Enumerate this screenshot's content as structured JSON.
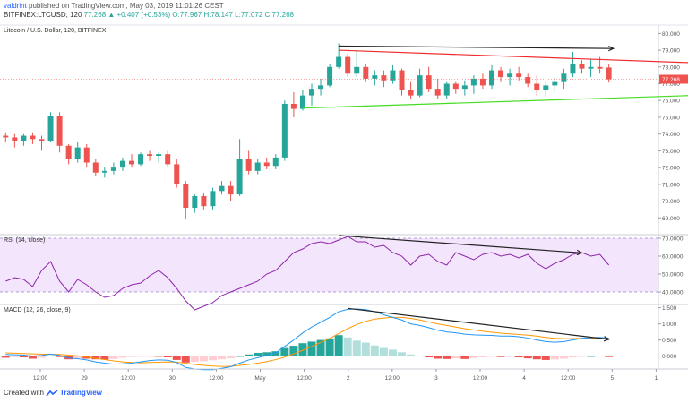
{
  "header": {
    "user": "valdrint",
    "published": "published on TradingView.com, May 03, 2019 11:01:26 CEST",
    "symbol": "BITFINEX:LTCUSD, 120",
    "ohlc": "77.268 ▲ +0.407 (+0.53%) O:77.967 H:78.147 L:77.072 C:77.268"
  },
  "footer": {
    "created": "Created with",
    "brand": "TradingView"
  },
  "colors": {
    "up": "#26a69a",
    "down": "#ef5350",
    "rsi": "#8e24aa",
    "macd": "#2196f3",
    "signal": "#ff9800",
    "rsi_band": "#f3e5fc",
    "price_tag": "#ef5350"
  },
  "chart_data": [
    {
      "type": "candlestick",
      "title": "Litecoin / U.S. Dollar, 120, BITFINEX",
      "ylim": [
        68,
        80.5
      ],
      "yticks": [
        "69.000",
        "70.000",
        "71.000",
        "72.000",
        "73.000",
        "74.000",
        "75.000",
        "76.000",
        "77.000",
        "78.000",
        "79.000",
        "80.000"
      ],
      "last_price": "77.268",
      "x_ticks": [
        "12:00",
        "29",
        "12:00",
        "30",
        "12:00",
        "May",
        "12:00",
        "2",
        "12:00",
        "3",
        "12:00",
        "4",
        "12:00",
        "5",
        "1"
      ],
      "candles": [
        [
          73.9,
          74.1,
          73.5,
          73.8
        ],
        [
          73.8,
          74.0,
          73.2,
          73.6
        ],
        [
          73.6,
          74.0,
          73.3,
          73.9
        ],
        [
          73.9,
          74.1,
          73.4,
          73.7
        ],
        [
          73.7,
          73.9,
          73.0,
          73.6
        ],
        [
          73.6,
          75.3,
          73.5,
          75.1
        ],
        [
          75.1,
          75.3,
          72.9,
          73.3
        ],
        [
          73.3,
          73.4,
          72.2,
          72.5
        ],
        [
          72.5,
          73.5,
          72.3,
          73.2
        ],
        [
          73.2,
          73.4,
          72.0,
          72.3
        ],
        [
          72.3,
          72.5,
          71.5,
          71.7
        ],
        [
          71.7,
          72.0,
          71.4,
          71.8
        ],
        [
          71.8,
          72.3,
          71.6,
          72.0
        ],
        [
          72.0,
          72.6,
          71.8,
          72.4
        ],
        [
          72.4,
          72.8,
          72.0,
          72.2
        ],
        [
          72.2,
          72.9,
          72.1,
          72.8
        ],
        [
          72.8,
          73.0,
          72.4,
          72.7
        ],
        [
          72.7,
          72.9,
          72.3,
          72.8
        ],
        [
          72.8,
          73.0,
          72.0,
          72.2
        ],
        [
          72.2,
          72.5,
          70.8,
          71.0
        ],
        [
          71.0,
          71.2,
          68.9,
          69.6
        ],
        [
          69.6,
          70.4,
          69.3,
          70.3
        ],
        [
          70.3,
          70.5,
          69.5,
          69.7
        ],
        [
          69.7,
          70.8,
          69.5,
          70.6
        ],
        [
          70.6,
          71.2,
          70.4,
          70.9
        ],
        [
          70.9,
          71.2,
          70.0,
          70.4
        ],
        [
          70.4,
          73.7,
          70.3,
          72.5
        ],
        [
          72.5,
          73.0,
          71.6,
          71.8
        ],
        [
          71.8,
          72.5,
          71.6,
          72.3
        ],
        [
          72.3,
          72.6,
          71.9,
          72.1
        ],
        [
          72.1,
          72.8,
          71.9,
          72.6
        ],
        [
          72.6,
          76.0,
          72.4,
          75.8
        ],
        [
          75.8,
          76.5,
          75.0,
          75.5
        ],
        [
          75.5,
          76.6,
          75.4,
          76.3
        ],
        [
          76.3,
          77.0,
          75.7,
          76.7
        ],
        [
          76.7,
          77.3,
          76.3,
          76.9
        ],
        [
          76.9,
          78.2,
          76.8,
          78.0
        ],
        [
          78.0,
          79.4,
          77.9,
          78.6
        ],
        [
          78.6,
          78.8,
          77.4,
          77.6
        ],
        [
          77.6,
          79.0,
          77.4,
          78.0
        ],
        [
          78.0,
          78.2,
          77.1,
          77.3
        ],
        [
          77.3,
          77.8,
          76.9,
          77.5
        ],
        [
          77.5,
          77.8,
          76.8,
          77.2
        ],
        [
          77.2,
          78.1,
          77.0,
          77.8
        ],
        [
          77.8,
          77.9,
          76.3,
          76.6
        ],
        [
          76.6,
          77.1,
          76.1,
          76.3
        ],
        [
          76.3,
          77.9,
          76.2,
          77.5
        ],
        [
          77.5,
          78.0,
          76.5,
          76.7
        ],
        [
          76.7,
          77.3,
          76.1,
          76.3
        ],
        [
          76.3,
          77.1,
          76.1,
          77.0
        ],
        [
          77.0,
          77.1,
          76.4,
          76.7
        ],
        [
          76.7,
          77.2,
          76.3,
          76.9
        ],
        [
          76.9,
          77.5,
          76.4,
          77.3
        ],
        [
          77.3,
          77.6,
          76.7,
          76.9
        ],
        [
          76.9,
          78.1,
          76.7,
          77.8
        ],
        [
          77.8,
          78.0,
          77.1,
          77.4
        ],
        [
          77.4,
          77.9,
          76.9,
          77.6
        ],
        [
          77.6,
          78.0,
          77.2,
          77.4
        ],
        [
          77.4,
          77.6,
          76.8,
          77.0
        ],
        [
          77.0,
          77.5,
          76.3,
          76.6
        ],
        [
          76.6,
          77.1,
          76.2,
          76.9
        ],
        [
          76.9,
          77.4,
          76.5,
          77.1
        ],
        [
          77.1,
          77.9,
          76.7,
          77.6
        ],
        [
          77.6,
          78.9,
          77.4,
          78.2
        ],
        [
          78.2,
          78.4,
          77.6,
          77.9
        ],
        [
          77.9,
          78.5,
          77.4,
          78.0
        ],
        [
          78.0,
          78.6,
          77.6,
          77.9
        ],
        [
          77.967,
          78.147,
          77.072,
          77.268
        ]
      ],
      "trendlines": [
        {
          "color": "#222222",
          "points": [
            [
              37,
              79.25
            ],
            [
              67.5,
              79.1
            ]
          ]
        },
        {
          "color": "#ef2d2d",
          "points": [
            [
              37,
              79.0
            ],
            [
              79,
              78.2
            ]
          ]
        },
        {
          "color": "#44dd22",
          "points": [
            [
              33,
              75.55
            ],
            [
              82,
              76.4
            ]
          ]
        }
      ]
    },
    {
      "type": "line",
      "title": "RSI (14, close)",
      "ylim": [
        33,
        72
      ],
      "band": [
        40,
        70
      ],
      "yticks": [
        "40.0000",
        "50.0000",
        "60.0000",
        "70.0000"
      ],
      "series": [
        {
          "values": [
            46,
            48,
            47,
            43,
            52,
            57,
            46,
            40,
            47,
            44,
            40,
            37,
            38,
            42,
            44,
            45,
            49,
            52,
            48,
            42,
            35,
            30,
            32,
            34,
            38,
            40,
            42,
            44,
            46,
            50,
            52,
            57,
            62,
            64,
            67,
            68,
            67,
            69,
            71,
            68,
            68,
            65,
            66,
            62,
            60,
            55,
            60,
            61,
            57,
            55,
            62,
            60,
            58,
            61,
            62,
            60,
            61,
            59,
            61,
            56,
            53,
            56,
            58,
            61,
            62,
            60,
            61,
            55
          ]
        }
      ],
      "trendlines": [
        {
          "color": "#222222",
          "points": [
            [
              37,
              71.5
            ],
            [
              64,
              61.8
            ]
          ]
        }
      ]
    },
    {
      "type": "bar+line",
      "title": "MACD (12, 26, close, 9)",
      "ylim": [
        -0.4,
        1.6
      ],
      "yticks": [
        "0.000",
        "0.500",
        "1.000",
        "1.500"
      ],
      "histogram": [
        -0.05,
        -0.03,
        -0.04,
        -0.08,
        -0.05,
        0.02,
        -0.03,
        -0.1,
        -0.06,
        -0.08,
        -0.1,
        -0.11,
        -0.09,
        -0.05,
        -0.03,
        -0.02,
        -0.01,
        -0.02,
        -0.04,
        -0.12,
        -0.2,
        -0.18,
        -0.16,
        -0.13,
        -0.1,
        -0.07,
        0.0,
        0.05,
        0.1,
        0.12,
        0.15,
        0.25,
        0.32,
        0.4,
        0.45,
        0.5,
        0.55,
        0.65,
        0.58,
        0.48,
        0.42,
        0.33,
        0.25,
        0.2,
        0.12,
        0.05,
        0.01,
        -0.04,
        -0.08,
        -0.09,
        -0.07,
        -0.09,
        -0.06,
        -0.04,
        -0.02,
        -0.03,
        -0.02,
        -0.04,
        -0.07,
        -0.1,
        -0.12,
        -0.1,
        -0.08,
        -0.04,
        -0.01,
        0.0,
        0.01,
        -0.03
      ],
      "histogram_colors": [
        "#ef5350",
        "#ffcdd2",
        "#26a69a",
        "#b2dfdb"
      ],
      "series": [
        {
          "values": [
            0.05,
            0.04,
            0.03,
            0.0,
            0.02,
            0.06,
            0.02,
            -0.06,
            -0.08,
            -0.12,
            -0.18,
            -0.22,
            -0.25,
            -0.24,
            -0.22,
            -0.18,
            -0.14,
            -0.12,
            -0.13,
            -0.2,
            -0.35,
            -0.4,
            -0.42,
            -0.42,
            -0.38,
            -0.33,
            -0.22,
            -0.12,
            -0.05,
            0.02,
            0.1,
            0.3,
            0.5,
            0.72,
            0.9,
            1.05,
            1.2,
            1.38,
            1.45,
            1.46,
            1.44,
            1.38,
            1.28,
            1.2,
            1.12,
            1.0,
            0.95,
            0.88,
            0.8,
            0.75,
            0.72,
            0.68,
            0.66,
            0.65,
            0.64,
            0.62,
            0.62,
            0.6,
            0.56,
            0.5,
            0.45,
            0.43,
            0.45,
            0.5,
            0.55,
            0.57,
            0.58,
            0.55
          ]
        },
        {
          "values": [
            0.1,
            0.09,
            0.08,
            0.07,
            0.06,
            0.06,
            0.05,
            0.03,
            0.01,
            -0.03,
            -0.07,
            -0.11,
            -0.15,
            -0.18,
            -0.2,
            -0.21,
            -0.2,
            -0.19,
            -0.18,
            -0.19,
            -0.22,
            -0.26,
            -0.29,
            -0.31,
            -0.32,
            -0.32,
            -0.29,
            -0.26,
            -0.22,
            -0.17,
            -0.11,
            -0.03,
            0.07,
            0.18,
            0.3,
            0.42,
            0.55,
            0.7,
            0.85,
            0.98,
            1.08,
            1.15,
            1.18,
            1.2,
            1.2,
            1.17,
            1.12,
            1.06,
            1.0,
            0.95,
            0.9,
            0.85,
            0.81,
            0.77,
            0.74,
            0.71,
            0.69,
            0.67,
            0.65,
            0.62,
            0.58,
            0.55,
            0.54,
            0.54,
            0.55,
            0.56,
            0.56,
            0.55
          ]
        }
      ],
      "trendlines": [
        {
          "color": "#222222",
          "points": [
            [
              38,
              1.48
            ],
            [
              67,
              0.52
            ]
          ]
        }
      ]
    }
  ]
}
